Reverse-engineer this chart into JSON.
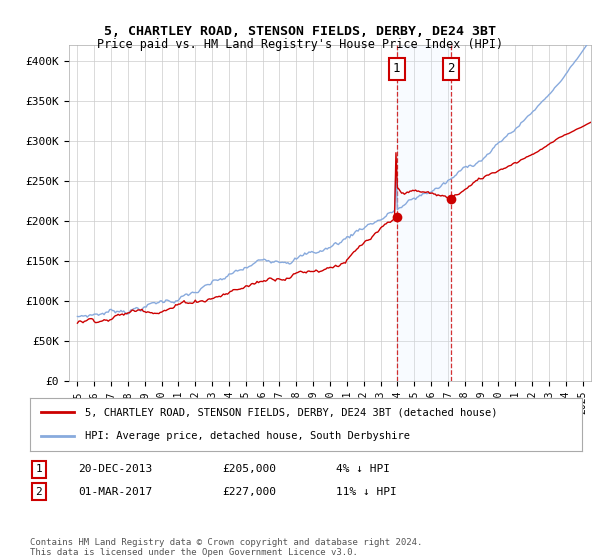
{
  "title": "5, CHARTLEY ROAD, STENSON FIELDS, DERBY, DE24 3BT",
  "subtitle": "Price paid vs. HM Land Registry's House Price Index (HPI)",
  "ylabel_ticks": [
    "£0",
    "£50K",
    "£100K",
    "£150K",
    "£200K",
    "£250K",
    "£300K",
    "£350K",
    "£400K"
  ],
  "ytick_values": [
    0,
    50000,
    100000,
    150000,
    200000,
    250000,
    300000,
    350000,
    400000
  ],
  "ylim": [
    0,
    420000
  ],
  "xlim_start": 1994.5,
  "xlim_end": 2025.5,
  "sale1_date": "20-DEC-2013",
  "sale1_price": 205000,
  "sale1_label": "1",
  "sale1_x": 2013.96,
  "sale2_date": "01-MAR-2017",
  "sale2_price": 227000,
  "sale2_label": "2",
  "sale2_x": 2017.17,
  "property_color": "#cc0000",
  "hpi_color": "#88aadd",
  "shade_color": "#ddeeff",
  "legend_property": "5, CHARTLEY ROAD, STENSON FIELDS, DERBY, DE24 3BT (detached house)",
  "legend_hpi": "HPI: Average price, detached house, South Derbyshire",
  "footer": "Contains HM Land Registry data © Crown copyright and database right 2024.\nThis data is licensed under the Open Government Licence v3.0.",
  "xticks": [
    1995,
    1996,
    1997,
    1998,
    1999,
    2000,
    2001,
    2002,
    2003,
    2004,
    2005,
    2006,
    2007,
    2008,
    2009,
    2010,
    2011,
    2012,
    2013,
    2014,
    2015,
    2016,
    2017,
    2018,
    2019,
    2020,
    2021,
    2022,
    2023,
    2024,
    2025
  ],
  "background_color": "#ffffff",
  "grid_color": "#cccccc",
  "sale1_pct": "4%",
  "sale2_pct": "11%"
}
